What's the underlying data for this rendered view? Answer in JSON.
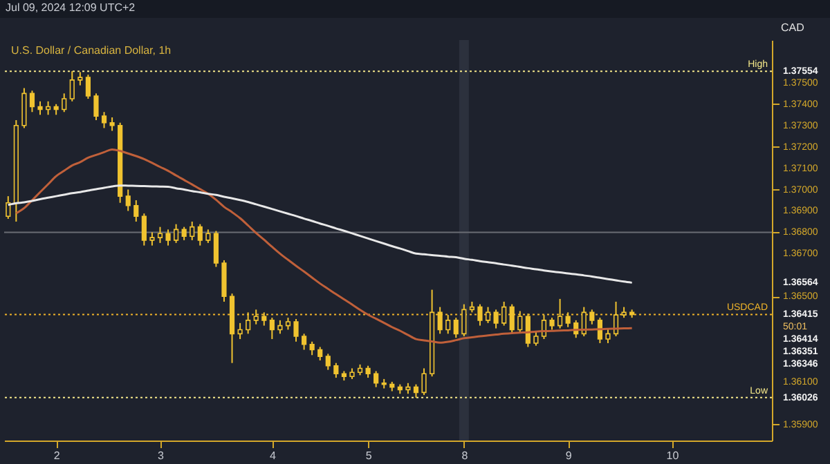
{
  "chart_data": {
    "type": "candlestick",
    "title": "U.S. Dollar / Canadian Dollar, 1h",
    "subtitle": "Jul 09, 2024 12:09 UTC+2",
    "ylabel": "CAD",
    "color": "#f0c330",
    "categories": [
      null,
      null,
      null,
      null,
      null,
      null,
      "2",
      null,
      null,
      null,
      null,
      null,
      null,
      null,
      null,
      null,
      null,
      null,
      null,
      "3",
      null,
      null,
      null,
      null,
      null,
      null,
      null,
      null,
      null,
      null,
      null,
      null,
      null,
      "4",
      null,
      null,
      null,
      null,
      null,
      null,
      null,
      null,
      null,
      null,
      null,
      "5",
      null,
      null,
      null,
      null,
      null,
      null,
      null,
      null,
      null,
      null,
      null,
      "8",
      null,
      null,
      null,
      null,
      null,
      null,
      null,
      null,
      null,
      null,
      null,
      null,
      "9",
      null,
      null,
      null,
      null,
      null,
      null,
      null,
      null,
      null,
      null,
      null,
      null,
      "10",
      null,
      null,
      null,
      null,
      null,
      null,
      null,
      null,
      null,
      null,
      null,
      null
    ],
    "ohlc": [
      [
        1.36875,
        1.36969,
        1.36863,
        1.36938
      ],
      [
        1.36938,
        1.37325,
        1.3685,
        1.373
      ],
      [
        1.373,
        1.37475,
        1.37288,
        1.3745
      ],
      [
        1.3745,
        1.37463,
        1.37363,
        1.37388
      ],
      [
        1.37388,
        1.37413,
        1.3735,
        1.37375
      ],
      [
        1.37375,
        1.37413,
        1.3735,
        1.37388
      ],
      [
        1.37388,
        1.374,
        1.3735,
        1.37375
      ],
      [
        1.37375,
        1.3745,
        1.37363,
        1.37425
      ],
      [
        1.37425,
        1.37554,
        1.37413,
        1.37513
      ],
      [
        1.37513,
        1.3755,
        1.37488,
        1.37525
      ],
      [
        1.37525,
        1.37538,
        1.37425,
        1.37438
      ],
      [
        1.37438,
        1.3745,
        1.37325,
        1.37344
      ],
      [
        1.37344,
        1.37363,
        1.37288,
        1.37313
      ],
      [
        1.37313,
        1.37338,
        1.37275,
        1.373
      ],
      [
        1.373,
        1.37313,
        1.36938,
        1.36969
      ],
      [
        1.36969,
        1.37,
        1.369,
        1.36925
      ],
      [
        1.36925,
        1.3695,
        1.3685,
        1.36875
      ],
      [
        1.36875,
        1.36888,
        1.36738,
        1.36763
      ],
      [
        1.36763,
        1.368,
        1.36738,
        1.36775
      ],
      [
        1.36775,
        1.36825,
        1.3675,
        1.36794
      ],
      [
        1.36794,
        1.36813,
        1.36738,
        1.36763
      ],
      [
        1.36763,
        1.36838,
        1.3675,
        1.36813
      ],
      [
        1.36813,
        1.36825,
        1.36763,
        1.36781
      ],
      [
        1.36781,
        1.3685,
        1.36763,
        1.36825
      ],
      [
        1.36825,
        1.36838,
        1.36738,
        1.36763
      ],
      [
        1.36763,
        1.36813,
        1.3675,
        1.36794
      ],
      [
        1.36794,
        1.36806,
        1.36638,
        1.36656
      ],
      [
        1.36656,
        1.36669,
        1.36475,
        1.365
      ],
      [
        1.365,
        1.36513,
        1.36188,
        1.36325
      ],
      [
        1.36325,
        1.36375,
        1.363,
        1.36344
      ],
      [
        1.36344,
        1.36425,
        1.36325,
        1.36388
      ],
      [
        1.36388,
        1.36438,
        1.36369,
        1.36406
      ],
      [
        1.36406,
        1.36425,
        1.36363,
        1.36388
      ],
      [
        1.36388,
        1.364,
        1.363,
        1.36344
      ],
      [
        1.36344,
        1.36388,
        1.36325,
        1.36363
      ],
      [
        1.36363,
        1.364,
        1.36344,
        1.36381
      ],
      [
        1.36381,
        1.36394,
        1.36288,
        1.36313
      ],
      [
        1.36313,
        1.36325,
        1.3625,
        1.36275
      ],
      [
        1.36275,
        1.36288,
        1.36225,
        1.3625
      ],
      [
        1.3625,
        1.36263,
        1.362,
        1.36219
      ],
      [
        1.36219,
        1.36231,
        1.36156,
        1.36175
      ],
      [
        1.36175,
        1.36188,
        1.36119,
        1.36138
      ],
      [
        1.36138,
        1.3615,
        1.36106,
        1.36125
      ],
      [
        1.36125,
        1.36163,
        1.36113,
        1.36144
      ],
      [
        1.36144,
        1.36181,
        1.36131,
        1.36163
      ],
      [
        1.36163,
        1.36175,
        1.36119,
        1.36138
      ],
      [
        1.36138,
        1.3615,
        1.36075,
        1.36094
      ],
      [
        1.36094,
        1.36113,
        1.36069,
        1.36088
      ],
      [
        1.36088,
        1.361,
        1.36056,
        1.36075
      ],
      [
        1.36075,
        1.36088,
        1.36044,
        1.36063
      ],
      [
        1.36063,
        1.36094,
        1.36044,
        1.36075
      ],
      [
        1.36075,
        1.36088,
        1.36026,
        1.3605
      ],
      [
        1.3605,
        1.36163,
        1.36038,
        1.36138
      ],
      [
        1.36138,
        1.36531,
        1.36125,
        1.36425
      ],
      [
        1.36425,
        1.3645,
        1.36325,
        1.36344
      ],
      [
        1.36344,
        1.36413,
        1.36325,
        1.36388
      ],
      [
        1.36388,
        1.364,
        1.36306,
        1.36325
      ],
      [
        1.36325,
        1.36463,
        1.36313,
        1.36438
      ],
      [
        1.36438,
        1.36475,
        1.36425,
        1.3645
      ],
      [
        1.3645,
        1.36463,
        1.36363,
        1.36388
      ],
      [
        1.36388,
        1.3645,
        1.36375,
        1.36425
      ],
      [
        1.36425,
        1.36438,
        1.3635,
        1.36375
      ],
      [
        1.36375,
        1.36475,
        1.36363,
        1.3645
      ],
      [
        1.3645,
        1.36463,
        1.36325,
        1.36344
      ],
      [
        1.36344,
        1.36431,
        1.36331,
        1.36406
      ],
      [
        1.36406,
        1.36419,
        1.36263,
        1.36281
      ],
      [
        1.36281,
        1.36338,
        1.36269,
        1.36313
      ],
      [
        1.36313,
        1.36413,
        1.363,
        1.36388
      ],
      [
        1.36388,
        1.364,
        1.36344,
        1.36363
      ],
      [
        1.36363,
        1.36488,
        1.3635,
        1.36406
      ],
      [
        1.36406,
        1.36425,
        1.36356,
        1.36375
      ],
      [
        1.36375,
        1.36388,
        1.36306,
        1.36325
      ],
      [
        1.36325,
        1.3645,
        1.36313,
        1.36425
      ],
      [
        1.36425,
        1.36438,
        1.36369,
        1.36388
      ],
      [
        1.36388,
        1.364,
        1.36281,
        1.363
      ],
      [
        1.363,
        1.3635,
        1.36281,
        1.36325
      ],
      [
        1.36325,
        1.36475,
        1.36313,
        1.36413
      ],
      [
        1.36413,
        1.3645,
        1.364,
        1.36425
      ],
      [
        1.36425,
        1.36438,
        1.364,
        1.36415
      ],
      null,
      null,
      null,
      null,
      null,
      null,
      null,
      null,
      null,
      null,
      null,
      null,
      null,
      null,
      null,
      null,
      null
    ],
    "series": [
      {
        "type": "line",
        "color": "#c0603a",
        "values": [
          null,
          1.36889,
          1.36913,
          1.3695,
          1.36988,
          1.37025,
          1.37063,
          1.37088,
          1.37113,
          1.37128,
          1.37149,
          1.37162,
          1.37175,
          1.37188,
          1.37181,
          1.37169,
          1.37157,
          1.37143,
          1.37125,
          1.37106,
          1.37088,
          1.37066,
          1.37045,
          1.37024,
          1.37002,
          1.36981,
          1.36952,
          1.36919,
          1.36894,
          1.36866,
          1.36832,
          1.36797,
          1.36765,
          1.36732,
          1.367,
          1.36671,
          1.36643,
          1.36616,
          1.36588,
          1.3656,
          1.36535,
          1.3651,
          1.36486,
          1.36462,
          1.36437,
          1.36414,
          1.36395,
          1.36376,
          1.36356,
          1.36339,
          1.36319,
          1.363,
          1.36294,
          1.36289,
          1.36283,
          1.36287,
          1.36295,
          1.36304,
          1.36308,
          1.36313,
          1.36317,
          1.36321,
          1.36325,
          1.36328,
          1.3633,
          1.36332,
          1.36335,
          1.36337,
          1.36338,
          1.3634,
          1.36341,
          1.36343,
          1.36344,
          1.36345,
          1.36346,
          1.36348,
          1.36349,
          1.3635,
          1.36351,
          null,
          null,
          null,
          null,
          null,
          null,
          null,
          null,
          null,
          null,
          null,
          null,
          null,
          null,
          null,
          null,
          null
        ]
      },
      {
        "type": "line",
        "color": "#e8e8e8",
        "values": [
          1.36928,
          1.36936,
          1.3694,
          1.36947,
          1.36955,
          1.36962,
          1.36969,
          1.36976,
          1.36983,
          1.36988,
          1.36995,
          1.37002,
          1.37008,
          1.37015,
          1.37019,
          1.37018,
          1.37017,
          1.37016,
          1.37015,
          1.37014,
          1.37013,
          1.37006,
          1.37,
          1.36993,
          1.36987,
          1.3698,
          1.36975,
          1.36966,
          1.36959,
          1.36951,
          1.36942,
          1.36931,
          1.3692,
          1.36909,
          1.36898,
          1.36887,
          1.36876,
          1.36864,
          1.36853,
          1.36841,
          1.3683,
          1.36818,
          1.36807,
          1.36795,
          1.36783,
          1.36771,
          1.36759,
          1.36747,
          1.36735,
          1.36724,
          1.36712,
          1.367,
          1.36697,
          1.36693,
          1.3669,
          1.36686,
          1.36683,
          1.36676,
          1.36671,
          1.36665,
          1.3666,
          1.36655,
          1.36649,
          1.36644,
          1.36638,
          1.36632,
          1.36627,
          1.36621,
          1.36616,
          1.36612,
          1.36607,
          1.36603,
          1.36598,
          1.36593,
          1.36587,
          1.36581,
          1.36575,
          1.36569,
          1.36564,
          null,
          null,
          null,
          null,
          null,
          null,
          null,
          null,
          null,
          null,
          null,
          null,
          null,
          null,
          null,
          null,
          null
        ]
      }
    ],
    "ylim": [
      1.35825,
      1.377
    ],
    "yticks": [
      {
        "value": 1.359,
        "label": "1.35900"
      },
      {
        "value": 1.361,
        "label": "1.36100"
      },
      {
        "value": 1.365,
        "label": "1.36500"
      },
      {
        "value": 1.367,
        "label": "1.36700"
      },
      {
        "value": 1.368,
        "label": "1.36800"
      },
      {
        "value": 1.369,
        "label": "1.36900"
      },
      {
        "value": 1.37,
        "label": "1.37000"
      },
      {
        "value": 1.371,
        "label": "1.37100"
      },
      {
        "value": 1.372,
        "label": "1.37200"
      },
      {
        "value": 1.373,
        "label": "1.37300"
      },
      {
        "value": 1.374,
        "label": "1.37400"
      },
      {
        "value": 1.375,
        "label": "1.37500"
      }
    ],
    "bands": [
      {
        "axis": "x",
        "from": "8",
        "to": "8",
        "label": null,
        "color": "#2c313d"
      }
    ],
    "ref_lines": [
      {
        "axis": "y",
        "value": 1.368,
        "label": null,
        "color": "#6a6d75",
        "line_style": "solid"
      },
      {
        "axis": "y",
        "value": 1.37554,
        "label": "High",
        "color": "#f5e88a",
        "line_style": "dotted"
      },
      {
        "axis": "y",
        "value": 1.36415,
        "label": "USDCAD",
        "color": "#f0b429",
        "line_style": "dotted"
      },
      {
        "axis": "y",
        "value": 1.36026,
        "label": "Low",
        "color": "#f5e88a",
        "line_style": "dotted"
      }
    ],
    "annotations": [
      "1.37554",
      "1.36564",
      "1.36415",
      "50:01",
      "1.36414",
      "1.36351",
      "1.36346",
      "1.36026"
    ]
  }
}
